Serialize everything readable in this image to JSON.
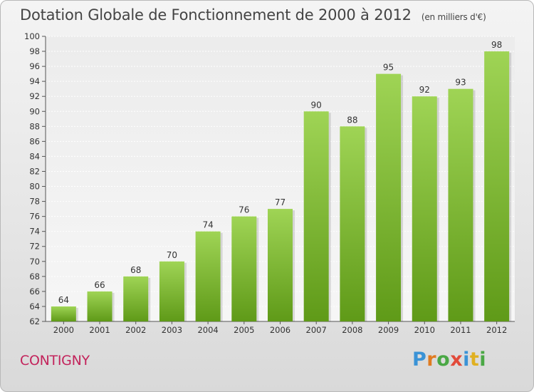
{
  "header": {
    "title": "Dotation Globale de Fonctionnement de 2000 à 2012",
    "subtitle": "(en milliers d'€)"
  },
  "commune": "CONTIGNY",
  "logo": {
    "letters": [
      "P",
      "r",
      "o",
      "x",
      "i",
      "t",
      "i"
    ],
    "colors": [
      "#3a93d6",
      "#e07b21",
      "#4aa845",
      "#e24a3a",
      "#3a93d6",
      "#e0b021",
      "#4aa845"
    ]
  },
  "colors": {
    "bar_top": "#9fd455",
    "bar_bottom": "#5f9a18",
    "commune": "#c3245c"
  },
  "chart_data": {
    "type": "bar",
    "categories": [
      "2000",
      "2001",
      "2002",
      "2003",
      "2004",
      "2005",
      "2006",
      "2007",
      "2008",
      "2009",
      "2010",
      "2011",
      "2012"
    ],
    "values": [
      64,
      66,
      68,
      70,
      74,
      76,
      77,
      90,
      88,
      95,
      92,
      93,
      98
    ],
    "ylim": [
      62,
      100
    ],
    "yticks": [
      62,
      64,
      66,
      68,
      70,
      72,
      74,
      76,
      78,
      80,
      82,
      84,
      86,
      88,
      90,
      92,
      94,
      96,
      98,
      100
    ],
    "grid": true,
    "data_labels": true
  }
}
